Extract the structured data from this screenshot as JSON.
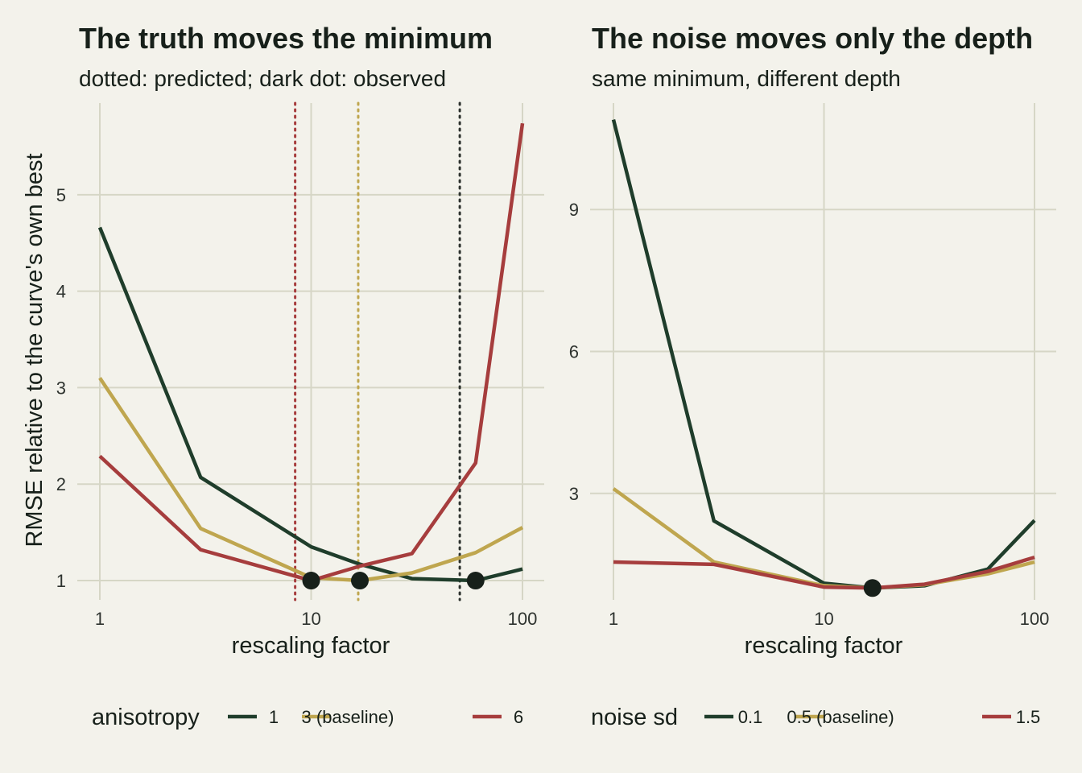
{
  "chart_data": [
    {
      "type": "line",
      "title": "The truth moves the minimum",
      "subtitle": "dotted: predicted; dark dot: observed",
      "xlabel": "rescaling factor",
      "ylabel": "RMSE relative to the curve's own best",
      "x_scale": "log10",
      "xlim": [
        1,
        100
      ],
      "ylim": [
        0.8,
        5.95
      ],
      "x_ticks": [
        1,
        10,
        100
      ],
      "y_ticks": [
        1,
        2,
        3,
        4,
        5
      ],
      "grid": true,
      "legend": {
        "title": "anisotropy",
        "placement": "bottom"
      },
      "x": [
        1,
        3,
        10,
        17,
        30,
        60,
        100
      ],
      "series": [
        {
          "name": "1",
          "color": "#1f3d2b",
          "values": [
            4.66,
            2.07,
            1.35,
            1.17,
            1.02,
            1.0,
            1.12
          ]
        },
        {
          "name": "3 (baseline)",
          "color": "#bfa64f",
          "values": [
            3.1,
            1.54,
            1.03,
            1.0,
            1.08,
            1.29,
            1.55
          ]
        },
        {
          "name": "6",
          "color": "#a63d3d",
          "values": [
            2.29,
            1.32,
            1.0,
            1.15,
            1.28,
            2.22,
            5.74
          ]
        }
      ],
      "predicted_lines": [
        {
          "x": 8.4,
          "color": "#a63d3d"
        },
        {
          "x": 16.7,
          "color": "#bfa64f"
        },
        {
          "x": 50.5,
          "color": "#2e332f"
        }
      ],
      "observed_minima": [
        {
          "x": 10,
          "y": 1.0
        },
        {
          "x": 17,
          "y": 1.0
        },
        {
          "x": 60,
          "y": 1.0
        }
      ]
    },
    {
      "type": "line",
      "title": "The noise moves only the depth",
      "subtitle": "same minimum, different depth",
      "xlabel": "rescaling factor",
      "ylabel": "",
      "x_scale": "log10",
      "xlim": [
        1,
        100
      ],
      "ylim": [
        0.75,
        11.25
      ],
      "x_ticks": [
        1,
        10,
        100
      ],
      "y_ticks": [
        3,
        6,
        9
      ],
      "grid": true,
      "legend": {
        "title": "noise sd",
        "placement": "bottom"
      },
      "x": [
        1,
        3,
        10,
        17,
        30,
        60,
        100
      ],
      "series": [
        {
          "name": "0.1",
          "color": "#1f3d2b",
          "values": [
            10.9,
            2.42,
            1.1,
            1.0,
            1.05,
            1.4,
            2.43
          ]
        },
        {
          "name": "0.5 (baseline)",
          "color": "#bfa64f",
          "values": [
            3.1,
            1.55,
            1.05,
            1.0,
            1.07,
            1.3,
            1.55
          ]
        },
        {
          "name": "1.5",
          "color": "#a63d3d",
          "values": [
            1.55,
            1.5,
            1.02,
            1.0,
            1.08,
            1.35,
            1.65
          ]
        }
      ],
      "predicted_lines": [],
      "observed_minima": [
        {
          "x": 17,
          "y": 1.0
        }
      ]
    }
  ]
}
